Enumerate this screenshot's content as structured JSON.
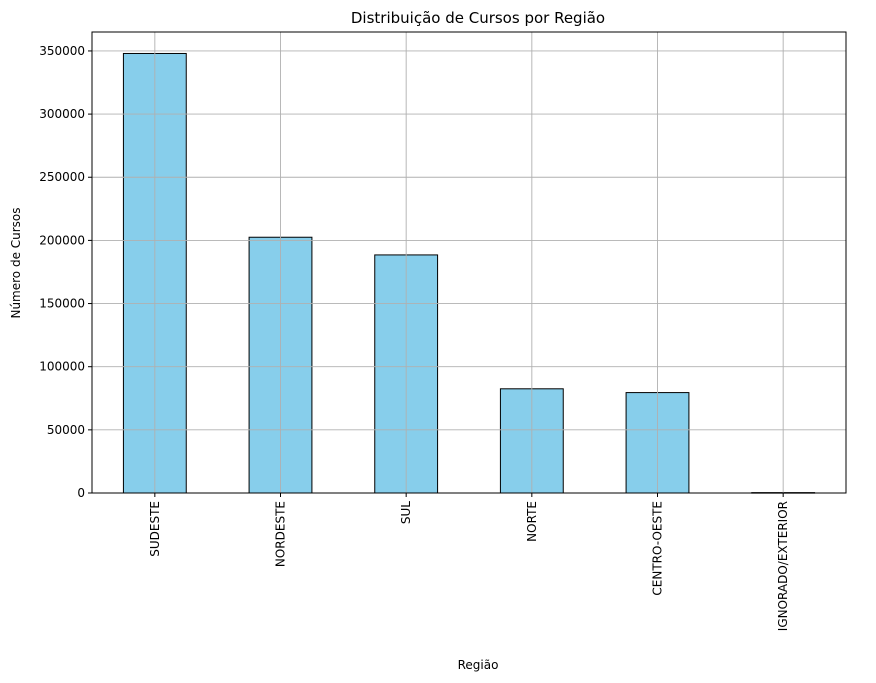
{
  "chart_data": {
    "type": "bar",
    "title": "Distribuição de Cursos por Região",
    "xlabel": "Região",
    "ylabel": "Número de Cursos",
    "categories": [
      "SUDESTE",
      "NORDESTE",
      "SUL",
      "NORTE",
      "CENTRO-OESTE",
      "IGNORADO/EXTERIOR"
    ],
    "values": [
      348000,
      202500,
      188500,
      82500,
      79500,
      300
    ],
    "ylim": [
      0,
      365000
    ],
    "yticks": [
      0,
      50000,
      100000,
      150000,
      200000,
      250000,
      300000,
      350000
    ],
    "ytick_labels": [
      "0",
      "50000",
      "100000",
      "150000",
      "200000",
      "250000",
      "300000",
      "350000"
    ],
    "grid": true,
    "bar_color": "#87ceeb",
    "edge_color": "#000000",
    "grid_color": "#b0b0b0"
  }
}
